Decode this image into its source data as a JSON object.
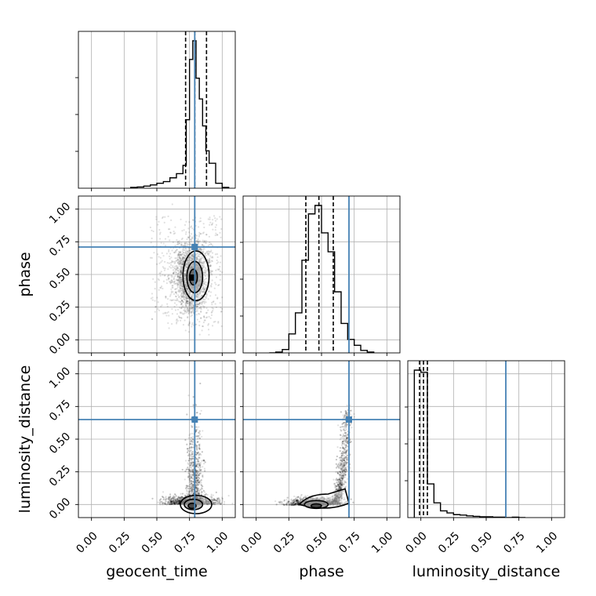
{
  "chart_data": {
    "type": "corner",
    "parameters": [
      "geocent_time",
      "phase",
      "luminosity_distance"
    ],
    "axis_range": [
      -0.1,
      1.1
    ],
    "ticks": [
      0.0,
      0.25,
      0.5,
      0.75,
      1.0
    ],
    "tick_labels": [
      "0.00",
      "0.25",
      "0.50",
      "0.75",
      "1.00"
    ],
    "truths": {
      "geocent_time": 0.79,
      "phase": 0.71,
      "luminosity_distance": 0.65
    },
    "quantiles": {
      "geocent_time": [
        0.72,
        0.79,
        0.88
      ],
      "phase": [
        0.38,
        0.48,
        0.59
      ],
      "luminosity_distance": [
        -0.01,
        0.02,
        0.05
      ]
    },
    "histograms": {
      "geocent_time": {
        "edges": [
          0.3,
          0.35,
          0.4,
          0.45,
          0.5,
          0.55,
          0.6,
          0.65,
          0.7,
          0.725,
          0.75,
          0.775,
          0.8,
          0.825,
          0.85,
          0.875,
          0.9,
          0.95,
          1.0,
          1.05
        ],
        "counts": [
          2,
          3,
          5,
          8,
          12,
          16,
          25,
          35,
          55,
          165,
          310,
          355,
          265,
          215,
          150,
          90,
          60,
          12,
          2
        ]
      },
      "phase": {
        "edges": [
          0.1,
          0.15,
          0.2,
          0.25,
          0.3,
          0.35,
          0.4,
          0.45,
          0.5,
          0.55,
          0.6,
          0.65,
          0.7,
          0.75,
          0.8,
          0.85,
          0.9
        ],
        "counts": [
          0,
          2,
          8,
          45,
          95,
          220,
          330,
          350,
          285,
          240,
          145,
          70,
          32,
          18,
          6,
          2
        ]
      },
      "luminosity_distance": {
        "edges": [
          -0.05,
          0.0,
          0.05,
          0.1,
          0.15,
          0.2,
          0.25,
          0.3,
          0.35,
          0.4,
          0.45,
          0.5,
          0.55,
          0.6,
          0.65,
          0.7,
          0.75,
          0.8
        ],
        "counts": [
          350,
          345,
          80,
          35,
          16,
          11,
          7,
          6,
          4,
          3,
          2,
          2,
          1,
          1,
          0,
          1,
          0
        ]
      }
    },
    "pairs": [
      {
        "x": "geocent_time",
        "y": "phase"
      },
      {
        "x": "geocent_time",
        "y": "luminosity_distance"
      },
      {
        "x": "phase",
        "y": "luminosity_distance"
      }
    ],
    "grid": true,
    "colors": {
      "truth": "#4682b4",
      "hist": "#000000",
      "scatter": "#000000",
      "contour_fill": "#bdbdbd",
      "grid": "#b0b0b0"
    }
  }
}
